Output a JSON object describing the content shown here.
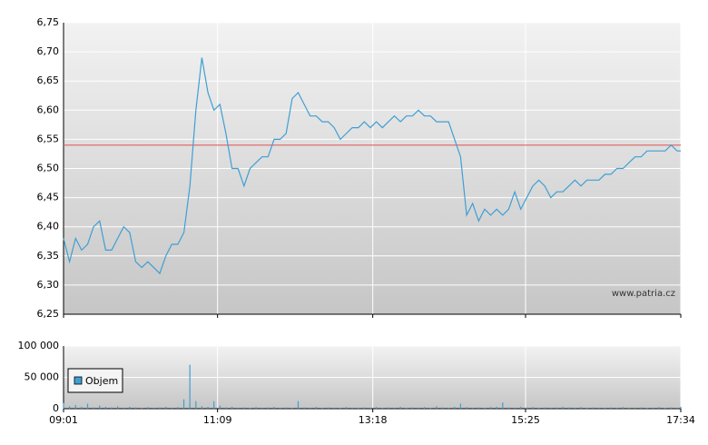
{
  "chart_data": {
    "type": "line",
    "watermark": "www.patria.cz",
    "x": [
      "09:01",
      "09:06",
      "09:11",
      "09:16",
      "09:21",
      "09:26",
      "09:31",
      "09:36",
      "09:41",
      "09:46",
      "09:51",
      "09:56",
      "10:01",
      "10:06",
      "10:11",
      "10:16",
      "10:21",
      "10:26",
      "10:31",
      "10:36",
      "10:41",
      "10:46",
      "10:51",
      "10:56",
      "11:01",
      "11:06",
      "11:11",
      "11:16",
      "11:21",
      "11:26",
      "11:31",
      "11:36",
      "11:41",
      "11:46",
      "11:51",
      "11:56",
      "12:01",
      "12:06",
      "12:11",
      "12:16",
      "12:21",
      "12:26",
      "12:31",
      "12:36",
      "12:41",
      "12:46",
      "12:51",
      "12:56",
      "13:01",
      "13:06",
      "13:11",
      "13:16",
      "13:21",
      "13:26",
      "13:31",
      "13:36",
      "13:41",
      "13:46",
      "13:51",
      "13:56",
      "14:01",
      "14:06",
      "14:11",
      "14:16",
      "14:21",
      "14:26",
      "14:31",
      "14:36",
      "14:41",
      "14:46",
      "14:51",
      "14:56",
      "15:01",
      "15:06",
      "15:11",
      "15:16",
      "15:21",
      "15:26",
      "15:31",
      "15:36",
      "15:41",
      "15:46",
      "15:51",
      "15:56",
      "16:01",
      "16:06",
      "16:11",
      "16:16",
      "16:21",
      "16:26",
      "16:31",
      "16:36",
      "16:41",
      "16:46",
      "16:51",
      "16:56",
      "17:01",
      "17:06",
      "17:11",
      "17:16",
      "17:21",
      "17:26",
      "17:31",
      "17:34"
    ],
    "series": [
      {
        "color": "#3f9fd3",
        "values": [
          6.38,
          6.34,
          6.38,
          6.36,
          6.37,
          6.4,
          6.41,
          6.36,
          6.36,
          6.38,
          6.4,
          6.39,
          6.34,
          6.33,
          6.34,
          6.33,
          6.32,
          6.35,
          6.37,
          6.37,
          6.39,
          6.47,
          6.6,
          6.69,
          6.63,
          6.6,
          6.61,
          6.56,
          6.5,
          6.5,
          6.47,
          6.5,
          6.51,
          6.52,
          6.52,
          6.55,
          6.55,
          6.56,
          6.62,
          6.63,
          6.61,
          6.59,
          6.59,
          6.58,
          6.58,
          6.57,
          6.55,
          6.56,
          6.57,
          6.57,
          6.58,
          6.57,
          6.58,
          6.57,
          6.58,
          6.59,
          6.58,
          6.59,
          6.59,
          6.6,
          6.59,
          6.59,
          6.58,
          6.58,
          6.58,
          6.55,
          6.52,
          6.42,
          6.44,
          6.41,
          6.43,
          6.42,
          6.43,
          6.42,
          6.43,
          6.46,
          6.43,
          6.45,
          6.47,
          6.48,
          6.47,
          6.45,
          6.46,
          6.46,
          6.47,
          6.48,
          6.47,
          6.48,
          6.48,
          6.48,
          6.49,
          6.49,
          6.5,
          6.5,
          6.51,
          6.52,
          6.52,
          6.53,
          6.53,
          6.53,
          6.53,
          6.54,
          6.53,
          6.53
        ]
      },
      {
        "name": "Objem",
        "type": "bar",
        "axis": "y2",
        "color": "#3f9fd3",
        "values": [
          9000,
          4000,
          6000,
          3000,
          8000,
          2000,
          5000,
          3000,
          2000,
          4000,
          1500,
          3000,
          2000,
          1000,
          2500,
          1500,
          2000,
          3000,
          1500,
          2500,
          15000,
          70000,
          12000,
          4000,
          3000,
          12000,
          5000,
          2000,
          3000,
          1500,
          2000,
          1000,
          2500,
          1500,
          2000,
          3000,
          1500,
          2000,
          1000,
          12000,
          2000,
          1500,
          3000,
          1000,
          2000,
          1500,
          1000,
          2500,
          1500,
          1000,
          2000,
          1500,
          2500,
          1000,
          2000,
          1500,
          3000,
          1000,
          2000,
          1500,
          2500,
          1000,
          4000,
          2000,
          1500,
          3000,
          8000,
          2500,
          1500,
          2000,
          1000,
          2500,
          3000,
          10000,
          2000,
          1500,
          3000,
          2000,
          2500,
          1000,
          2000,
          1500,
          2000,
          3000,
          2000,
          1500,
          2500,
          1000,
          2000,
          1500,
          1000,
          2000,
          1500,
          2500,
          1000,
          1500,
          2000,
          1000,
          1500,
          2500,
          1000,
          2000,
          1500,
          3000
        ]
      }
    ],
    "reference": {
      "value": 6.54,
      "color": "#e06060"
    },
    "xlim": [
      "09:01",
      "17:34"
    ],
    "xticks": [
      "09:01",
      "11:09",
      "13:18",
      "15:25",
      "17:34"
    ],
    "ylim": [
      6.25,
      6.75
    ],
    "yticks": [
      {
        "value": 6.25,
        "label": "6,25"
      },
      {
        "value": 6.3,
        "label": "6,30"
      },
      {
        "value": 6.35,
        "label": "6,35"
      },
      {
        "value": 6.4,
        "label": "6,40"
      },
      {
        "value": 6.45,
        "label": "6,45"
      },
      {
        "value": 6.5,
        "label": "6,50"
      },
      {
        "value": 6.55,
        "label": "6,55"
      },
      {
        "value": 6.6,
        "label": "6,60"
      },
      {
        "value": 6.65,
        "label": "6,65"
      },
      {
        "value": 6.7,
        "label": "6,70"
      },
      {
        "value": 6.75,
        "label": "6,75"
      }
    ],
    "y2lim": [
      0,
      100000
    ],
    "y2ticks": [
      0,
      {
        "value": 50000,
        "label": "50 000"
      },
      {
        "value": 100000,
        "label": "100 000"
      }
    ],
    "grid": true
  }
}
